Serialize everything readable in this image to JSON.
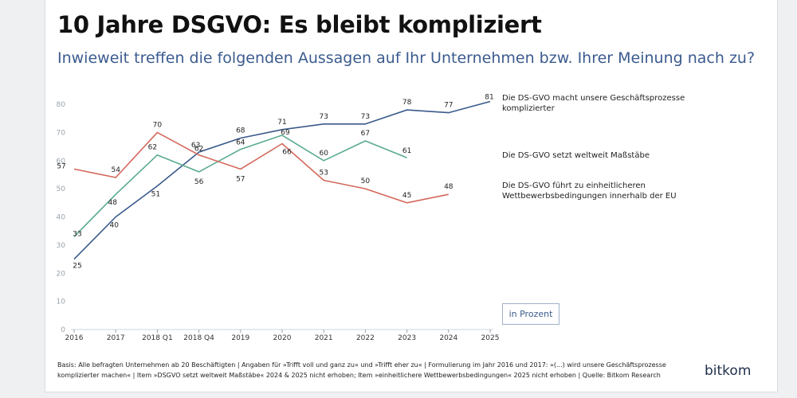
{
  "title": "10 Jahre DSGVO: Es bleibt kompliziert",
  "subtitle": "Inwieweit treffen die folgenden Aussagen auf Ihr Unternehmen bzw. Ihrer Meinung nach zu?",
  "unit_label": "in Prozent",
  "footnote": "Basis: Alle befragten Unternehmen ab 20 Beschäftigten | Angaben für »Trifft voll und ganz zu« und »Trifft eher zu« | Formulierung im Jahr 2016 und 2017: »(...) wird unsere Geschäftsprozesse komplizierter machen« | Item »DSGVO setzt weltweit Maßstäbe« 2024 & 2025 nicht erhoben; Item »einheitlichere Wettbewerbsbedingungen« 2025 nicht erhoben | Quelle: Bitkom Research",
  "logo": "bitkom",
  "colors": {
    "series_1": "#3a5a8c",
    "series_2": "#5aab8f",
    "series_3": "#d4685c",
    "axis_text": "#9aa3ad",
    "gridline": "#e3e6ea"
  },
  "chart_data": {
    "type": "line",
    "x": [
      "2016",
      "2017",
      "2018 Q1",
      "2018 Q4",
      "2019",
      "2020",
      "2021",
      "2022",
      "2023",
      "2024",
      "2025"
    ],
    "ylim": [
      0,
      80
    ],
    "yticks": [
      0,
      10,
      20,
      30,
      40,
      50,
      60,
      70,
      80
    ],
    "grid": false,
    "legend": "right, labels at line ends",
    "series": [
      {
        "name": "Die DS-GVO macht unsere Geschäftsprozesse komplizierter",
        "values": [
          25,
          40,
          51,
          63,
          68,
          71,
          73,
          73,
          78,
          77,
          81
        ]
      },
      {
        "name": "Die DS-GVO setzt weltweit Maßstäbe",
        "values": [
          33,
          48,
          62,
          56,
          64,
          69,
          60,
          67,
          61,
          null,
          null
        ]
      },
      {
        "name": "Die DS-GVO führt zu einheitlicheren Wettbewerbsbedingungen innerhalb der EU",
        "values": [
          57,
          54,
          70,
          62,
          57,
          66,
          53,
          50,
          45,
          48,
          null
        ]
      }
    ]
  }
}
